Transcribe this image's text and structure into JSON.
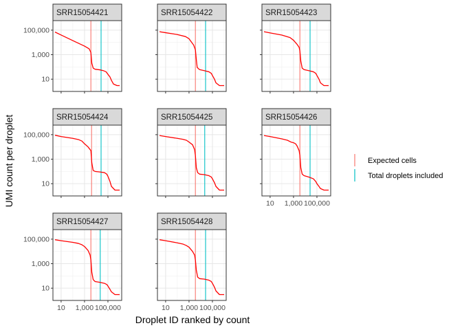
{
  "chart_data": {
    "type": "line",
    "layout": "facet_wrap",
    "xlabel": "Droplet ID ranked by count",
    "ylabel": "UMI count per droplet",
    "x_scale": "log10",
    "y_scale": "log10",
    "xlim": [
      2,
      1500000
    ],
    "ylim": [
      1,
      600000
    ],
    "x_ticks": [
      10,
      1000,
      100000
    ],
    "x_tick_labels": [
      "10",
      "1,000",
      "100,000"
    ],
    "y_ticks": [
      10,
      1000,
      100000
    ],
    "y_tick_labels": [
      "10",
      "1,000",
      "100,000"
    ],
    "grid": true,
    "legend": {
      "placement": "right",
      "entries": [
        {
          "label": "Expected cells",
          "color": "#F8766D"
        },
        {
          "label": "Total droplets included",
          "color": "#00BFC4"
        }
      ]
    },
    "curve_color": "#FF0000",
    "panels": [
      {
        "title": "SRR15054421",
        "expected_cells": 3500,
        "total_droplets_included": 26000,
        "curve": [
          [
            3,
            70000
          ],
          [
            10,
            40000
          ],
          [
            100,
            14000
          ],
          [
            1000,
            5000
          ],
          [
            2500,
            3000
          ],
          [
            3500,
            1500
          ],
          [
            4200,
            200
          ],
          [
            5500,
            80
          ],
          [
            8000,
            65
          ],
          [
            20000,
            58
          ],
          [
            40000,
            50
          ],
          [
            70000,
            40
          ],
          [
            100000,
            25
          ],
          [
            150000,
            15
          ],
          [
            200000,
            8
          ],
          [
            300000,
            4
          ],
          [
            600000,
            3
          ],
          [
            1000000,
            3
          ]
        ]
      },
      {
        "title": "SRR15054422",
        "expected_cells": 3500,
        "total_droplets_included": 26000,
        "curve": [
          [
            3,
            75000
          ],
          [
            10,
            62000
          ],
          [
            100,
            44000
          ],
          [
            500,
            30000
          ],
          [
            1000,
            20000
          ],
          [
            2000,
            8000
          ],
          [
            2500,
            6000
          ],
          [
            3500,
            2500
          ],
          [
            4200,
            400
          ],
          [
            5000,
            90
          ],
          [
            8000,
            60
          ],
          [
            20000,
            50
          ],
          [
            50000,
            40
          ],
          [
            80000,
            30
          ],
          [
            100000,
            20
          ],
          [
            150000,
            10
          ],
          [
            200000,
            5
          ],
          [
            400000,
            3
          ],
          [
            1000000,
            3
          ]
        ]
      },
      {
        "title": "SRR15054423",
        "expected_cells": 3500,
        "total_droplets_included": 26000,
        "curve": [
          [
            3,
            75000
          ],
          [
            10,
            60000
          ],
          [
            100,
            40000
          ],
          [
            500,
            25000
          ],
          [
            1000,
            15000
          ],
          [
            2000,
            7000
          ],
          [
            3000,
            4000
          ],
          [
            3500,
            2000
          ],
          [
            4200,
            300
          ],
          [
            5500,
            80
          ],
          [
            8000,
            60
          ],
          [
            20000,
            50
          ],
          [
            50000,
            40
          ],
          [
            80000,
            30
          ],
          [
            100000,
            20
          ],
          [
            150000,
            10
          ],
          [
            200000,
            5
          ],
          [
            400000,
            3
          ],
          [
            1000000,
            3
          ]
        ]
      },
      {
        "title": "SRR15054424",
        "expected_cells": 4000,
        "total_droplets_included": 26000,
        "curve": [
          [
            3,
            90000
          ],
          [
            10,
            70000
          ],
          [
            100,
            50000
          ],
          [
            300,
            40000
          ],
          [
            600,
            30000
          ],
          [
            1000,
            18000
          ],
          [
            2000,
            10000
          ],
          [
            3500,
            5000
          ],
          [
            4200,
            500
          ],
          [
            5500,
            120
          ],
          [
            8000,
            100
          ],
          [
            20000,
            90
          ],
          [
            50000,
            80
          ],
          [
            80000,
            60
          ],
          [
            100000,
            40
          ],
          [
            150000,
            15
          ],
          [
            200000,
            6
          ],
          [
            400000,
            3
          ],
          [
            1000000,
            3
          ]
        ]
      },
      {
        "title": "SRR15054425",
        "expected_cells": 3500,
        "total_droplets_included": 22000,
        "curve": [
          [
            3,
            85000
          ],
          [
            10,
            70000
          ],
          [
            100,
            50000
          ],
          [
            300,
            42000
          ],
          [
            600,
            35000
          ],
          [
            1000,
            25000
          ],
          [
            2000,
            15000
          ],
          [
            3000,
            6000
          ],
          [
            3500,
            2000
          ],
          [
            4200,
            200
          ],
          [
            5500,
            80
          ],
          [
            8000,
            60
          ],
          [
            20000,
            55
          ],
          [
            50000,
            45
          ],
          [
            80000,
            35
          ],
          [
            100000,
            25
          ],
          [
            150000,
            12
          ],
          [
            200000,
            6
          ],
          [
            400000,
            3
          ],
          [
            1000000,
            3
          ]
        ]
      },
      {
        "title": "SRR15054426",
        "expected_cells": 3500,
        "total_droplets_included": 26000,
        "curve": [
          [
            3,
            85000
          ],
          [
            10,
            70000
          ],
          [
            100,
            45000
          ],
          [
            300,
            35000
          ],
          [
            600,
            25000
          ],
          [
            1000,
            22000
          ],
          [
            1500,
            18000
          ],
          [
            2000,
            12000
          ],
          [
            3000,
            5000
          ],
          [
            3500,
            2000
          ],
          [
            4200,
            200
          ],
          [
            5500,
            60
          ],
          [
            8000,
            45
          ],
          [
            20000,
            35
          ],
          [
            50000,
            25
          ],
          [
            80000,
            15
          ],
          [
            100000,
            10
          ],
          [
            150000,
            6
          ],
          [
            200000,
            4
          ],
          [
            400000,
            3
          ],
          [
            1000000,
            3
          ]
        ]
      },
      {
        "title": "SRR15054427",
        "expected_cells": 3500,
        "total_droplets_included": 22000,
        "curve": [
          [
            3,
            90000
          ],
          [
            10,
            75000
          ],
          [
            100,
            55000
          ],
          [
            300,
            45000
          ],
          [
            600,
            35000
          ],
          [
            1000,
            25000
          ],
          [
            2000,
            12000
          ],
          [
            3000,
            5000
          ],
          [
            3500,
            2000
          ],
          [
            4200,
            200
          ],
          [
            5500,
            50
          ],
          [
            8000,
            35
          ],
          [
            20000,
            30
          ],
          [
            50000,
            25
          ],
          [
            80000,
            20
          ],
          [
            100000,
            15
          ],
          [
            150000,
            8
          ],
          [
            200000,
            5
          ],
          [
            400000,
            3
          ],
          [
            1000000,
            3
          ]
        ]
      },
      {
        "title": "SRR15054428",
        "expected_cells": 3500,
        "total_droplets_included": 26000,
        "curve": [
          [
            3,
            90000
          ],
          [
            10,
            75000
          ],
          [
            100,
            50000
          ],
          [
            300,
            40000
          ],
          [
            600,
            30000
          ],
          [
            1000,
            22000
          ],
          [
            2000,
            10000
          ],
          [
            3000,
            5000
          ],
          [
            3500,
            2000
          ],
          [
            4200,
            300
          ],
          [
            5500,
            80
          ],
          [
            8000,
            60
          ],
          [
            20000,
            55
          ],
          [
            50000,
            45
          ],
          [
            80000,
            35
          ],
          [
            100000,
            25
          ],
          [
            150000,
            12
          ],
          [
            200000,
            6
          ],
          [
            400000,
            3
          ],
          [
            1000000,
            3
          ]
        ]
      }
    ]
  }
}
